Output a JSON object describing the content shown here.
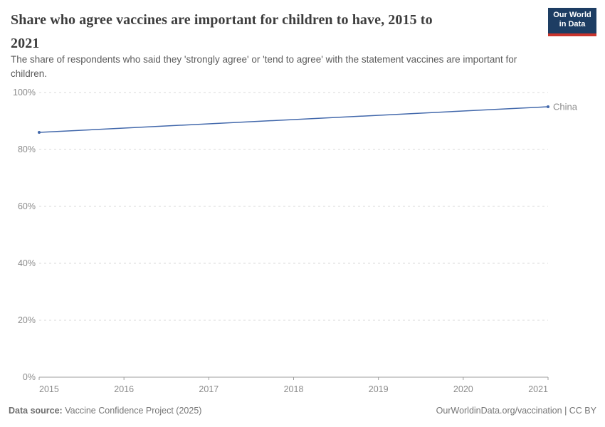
{
  "header": {
    "title_lines": [
      "Share who agree vaccines are important for children to have, 2015 to",
      "2021"
    ],
    "subtitle_lines": [
      "The share of respondents who said they 'strongly agree' or 'tend to agree' with the statement vaccines are important for",
      "children."
    ],
    "logo": {
      "line1": "Our World",
      "line2": "in Data",
      "bg_color": "#1d3d63",
      "accent_color": "#c9342c"
    }
  },
  "chart_data": {
    "type": "line",
    "title": "Share who agree vaccines are important for children to have, 2015 to 2021",
    "x": [
      2015,
      2021
    ],
    "series": [
      {
        "name": "China",
        "color": "#4268ab",
        "values": [
          86,
          95
        ]
      }
    ],
    "xlim": [
      2015,
      2021
    ],
    "ylim": [
      0,
      100
    ],
    "x_ticks": [
      2015,
      2016,
      2017,
      2018,
      2019,
      2020,
      2021
    ],
    "x_tick_labels": [
      "2015",
      "2016",
      "2017",
      "2018",
      "2019",
      "2020",
      "2021"
    ],
    "y_ticks": [
      0,
      20,
      40,
      60,
      80,
      100
    ],
    "y_tick_labels": [
      "0%",
      "20%",
      "40%",
      "60%",
      "80%",
      "100%"
    ],
    "grid": "horizontal dashed",
    "legend": "line-end label",
    "colors": {
      "grid": "#dadada",
      "axis": "#9e9e9e",
      "tick_label": "#8b8b8b"
    }
  },
  "footer": {
    "source_label": "Data source:",
    "source_value": " Vaccine Confidence Project (2025)",
    "credit": "OurWorldinData.org/vaccination | CC BY"
  }
}
